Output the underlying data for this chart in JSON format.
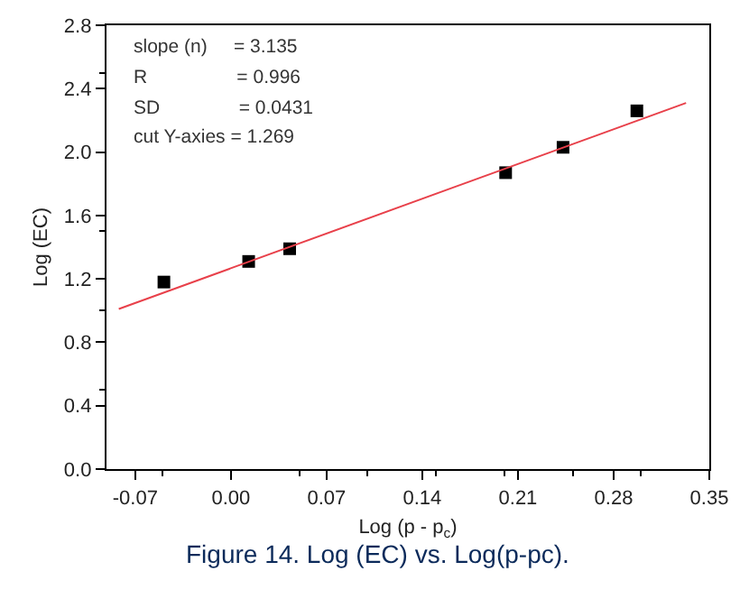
{
  "chart_data": {
    "type": "scatter",
    "xlabel": "Log (p - p$_{c}$)",
    "ylabel": "Log (EC)",
    "xlim": [
      -0.091,
      0.35
    ],
    "xticks": [
      -0.07,
      {
        "value": 0,
        "label": "0.00"
      },
      0.07,
      0.14,
      0.21,
      0.28,
      0.35
    ],
    "ylim": [
      0,
      2.8
    ],
    "yticks": [
      {
        "value": 0,
        "label": "0.0"
      },
      0.4,
      0.8,
      1.2,
      1.6,
      {
        "value": 2,
        "label": "2.0"
      },
      2.4,
      2.8
    ],
    "grid": false,
    "marker": "square",
    "series": [
      {
        "color": "#000000",
        "x": [
          -0.049,
          0.013,
          0.043,
          0.201,
          0.243,
          0.297
        ],
        "values": [
          1.18,
          1.31,
          1.39,
          1.87,
          2.03,
          2.26
        ]
      },
      {
        "type": "line",
        "color": "#e8404a",
        "marker": "none",
        "line_style": "solid",
        "x": [
          -0.082,
          0.333
        ],
        "values": [
          1.01,
          2.31
        ]
      }
    ],
    "annotations": [
      "slope (n)     = 3.135",
      "R                 = 0.996",
      "SD               = 0.0431",
      "cut Y-axies = 1.269",
      "Figure 14. Log (EC) vs. Log(p-pc)."
    ]
  }
}
